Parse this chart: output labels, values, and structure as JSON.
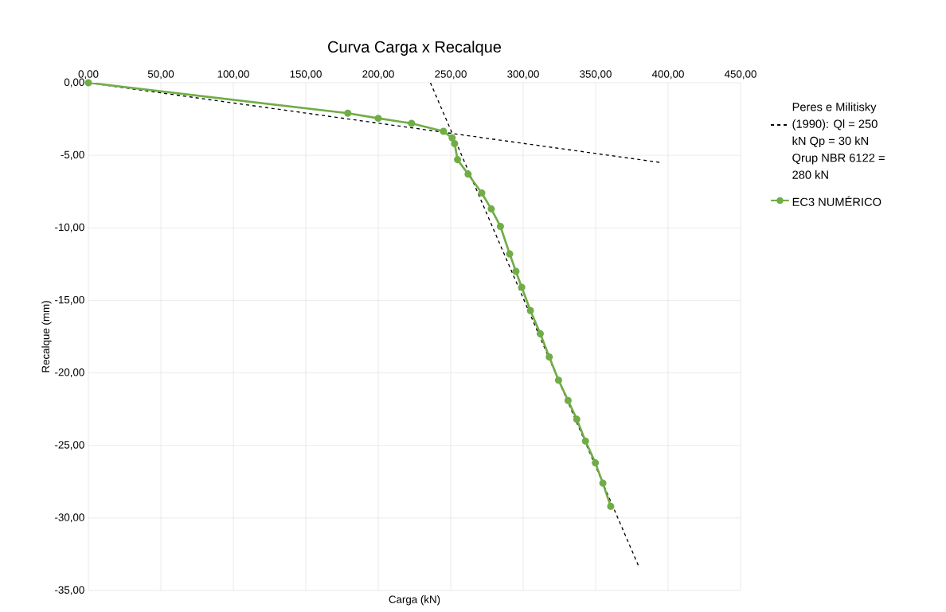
{
  "chart_data": {
    "type": "line",
    "title": "Curva Carga x Recalque",
    "xlabel": "Carga (kN)",
    "ylabel": "Recalque (mm)",
    "xlim": [
      0,
      450
    ],
    "ylim": [
      -35,
      0
    ],
    "xticks": [
      {
        "value": 0,
        "label": "0,00"
      },
      {
        "value": 50,
        "label": "50,00"
      },
      {
        "value": 100,
        "label": "100,00"
      },
      {
        "value": 150,
        "label": "150,00"
      },
      {
        "value": 200,
        "label": "200,00"
      },
      {
        "value": 250,
        "label": "250,00"
      },
      {
        "value": 300,
        "label": "300,00"
      },
      {
        "value": 350,
        "label": "350,00"
      },
      {
        "value": 400,
        "label": "400,00"
      },
      {
        "value": 450,
        "label": "450,00"
      }
    ],
    "yticks": [
      {
        "value": 0,
        "label": "0,00"
      },
      {
        "value": -5,
        "label": "-5,00"
      },
      {
        "value": -10,
        "label": "-10,00"
      },
      {
        "value": -15,
        "label": "-15,00"
      },
      {
        "value": -20,
        "label": "-20,00"
      },
      {
        "value": -25,
        "label": "-25,00"
      },
      {
        "value": -30,
        "label": "-30,00"
      },
      {
        "value": -35,
        "label": "-35,00"
      }
    ],
    "grid": true,
    "legend": "right",
    "series": [
      {
        "name": "Peres e Militisky (1990): Ql = 250 kN Qp = 30 kN Qrup NBR 6122 = 280 kN",
        "color": "#000000",
        "line_style": "dashed",
        "marker": "none",
        "x": [
          0,
          395
        ],
        "values": [
          0,
          -5.5
        ]
      },
      {
        "color": "#000000",
        "line_style": "dashed",
        "marker": "none",
        "x": [
          236,
          380
        ],
        "values": [
          0,
          -33.4
        ]
      },
      {
        "name": "EC3 NUMÉRICO",
        "color": "#70ad47",
        "line_style": "solid",
        "marker": "circle",
        "x": [
          0,
          179,
          200,
          223,
          245,
          251,
          252.7,
          254.7,
          262,
          271.4,
          278,
          284.3,
          290.7,
          295,
          299,
          305,
          311.8,
          318,
          324.4,
          331,
          337,
          343,
          349.8,
          355,
          360.4
        ],
        "values": [
          0,
          -2.1,
          -2.45,
          -2.8,
          -3.35,
          -3.8,
          -4.2,
          -5.3,
          -6.3,
          -7.6,
          -8.7,
          -9.9,
          -11.8,
          -13.0,
          -14.1,
          -15.7,
          -17.3,
          -18.9,
          -20.5,
          -21.9,
          -23.2,
          -24.7,
          -26.2,
          -27.6,
          -29.2
        ]
      }
    ]
  }
}
